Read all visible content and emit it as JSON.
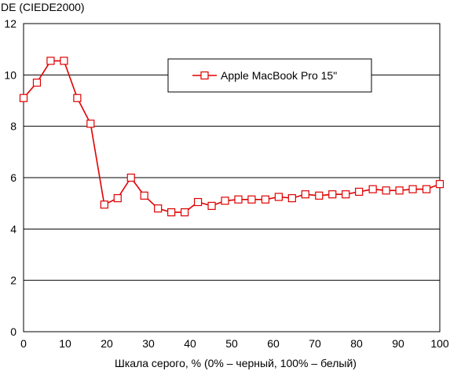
{
  "chart_data": {
    "type": "line",
    "title": "",
    "ylabel": "DE (CIEDE2000)",
    "xlabel": "Шкала серого, % (0% – черный, 100% – белый)",
    "xlim": [
      0,
      100
    ],
    "ylim": [
      0,
      12
    ],
    "xticks": [
      0,
      10,
      20,
      30,
      40,
      50,
      60,
      70,
      80,
      90,
      100
    ],
    "yticks": [
      0,
      2,
      4,
      6,
      8,
      10,
      12
    ],
    "grid": "horizontal",
    "legend_position": "top-right",
    "series": [
      {
        "name": "Apple MacBook Pro 15\"",
        "color": "#e00000",
        "marker": "open-square",
        "x": [
          0,
          3.2,
          6.5,
          9.7,
          12.9,
          16.1,
          19.4,
          22.6,
          25.8,
          29.0,
          32.3,
          35.5,
          38.7,
          41.9,
          45.2,
          48.4,
          51.6,
          54.8,
          58.1,
          61.3,
          64.5,
          67.7,
          71.0,
          74.2,
          77.4,
          80.6,
          83.9,
          87.1,
          90.3,
          93.5,
          96.8,
          100
        ],
        "y": [
          9.1,
          9.7,
          10.55,
          10.55,
          9.1,
          8.1,
          4.95,
          5.2,
          6.0,
          5.3,
          4.8,
          4.65,
          4.65,
          5.05,
          4.9,
          5.1,
          5.15,
          5.15,
          5.15,
          5.25,
          5.2,
          5.35,
          5.3,
          5.35,
          5.35,
          5.45,
          5.55,
          5.5,
          5.5,
          5.55,
          5.55,
          5.75
        ]
      }
    ]
  }
}
